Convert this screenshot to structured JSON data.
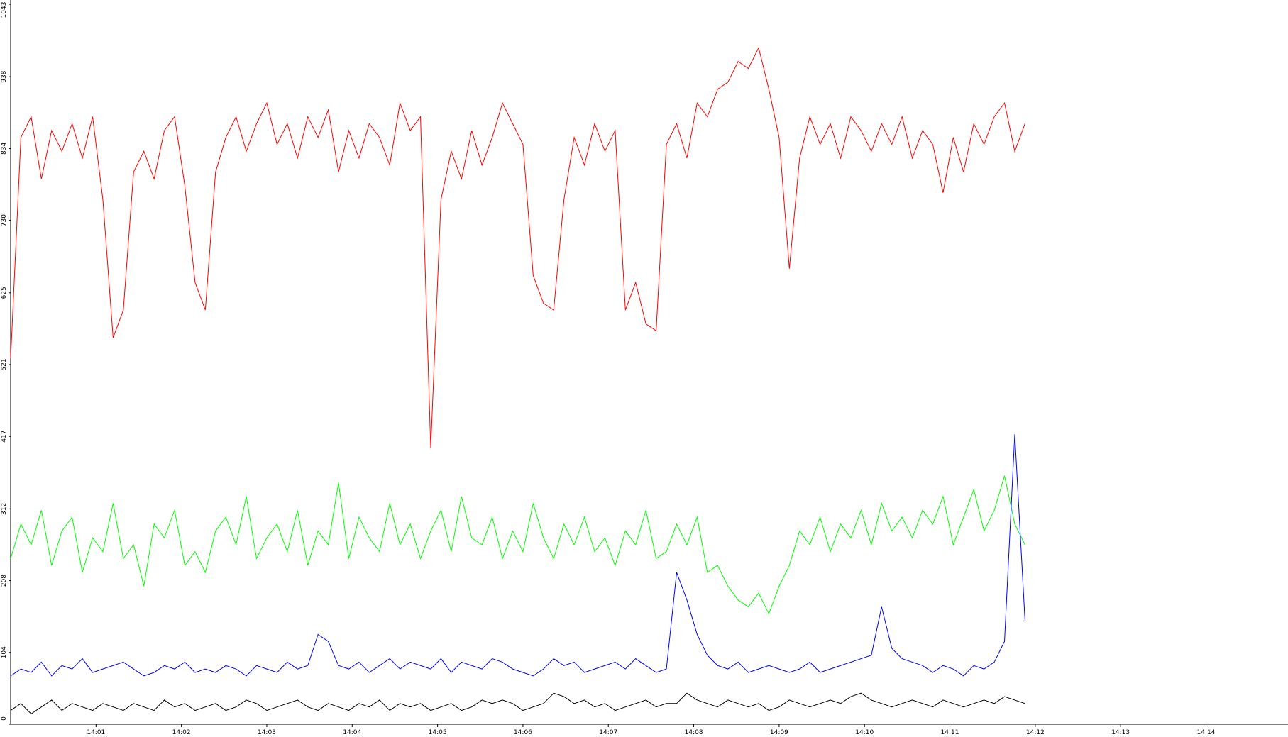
{
  "chart_data": {
    "type": "line",
    "x": [
      840.0,
      840.12,
      840.24,
      840.36,
      840.48,
      840.6,
      840.72,
      840.84,
      840.96,
      841.08,
      841.2,
      841.32,
      841.44,
      841.56,
      841.68,
      841.8,
      841.92,
      842.04,
      842.16,
      842.28,
      842.4,
      842.52,
      842.64,
      842.76,
      842.88,
      843.0,
      843.12,
      843.24,
      843.36,
      843.48,
      843.6,
      843.72,
      843.84,
      843.96,
      844.08,
      844.2,
      844.32,
      844.44,
      844.56,
      844.68,
      844.8,
      844.92,
      845.04,
      845.16,
      845.28,
      845.4,
      845.52,
      845.64,
      845.76,
      845.88,
      846.0,
      846.12,
      846.24,
      846.36,
      846.48,
      846.6,
      846.72,
      846.84,
      846.96,
      847.08,
      847.2,
      847.32,
      847.44,
      847.56,
      847.68,
      847.8,
      847.92,
      848.04,
      848.16,
      848.28,
      848.4,
      848.52,
      848.64,
      848.76,
      848.88,
      849.0,
      849.12,
      849.24,
      849.36,
      849.48,
      849.6,
      849.72,
      849.84,
      849.96,
      850.08,
      850.2,
      850.32,
      850.44,
      850.56,
      850.68,
      850.8,
      850.92,
      851.04,
      851.16,
      851.28,
      851.4,
      851.52,
      851.64,
      851.76,
      851.88
    ],
    "series": [
      {
        "color": "#ff0000",
        "values": [
          530,
          850,
          880,
          790,
          860,
          830,
          870,
          820,
          880,
          760,
          560,
          600,
          800,
          830,
          790,
          860,
          880,
          780,
          640,
          600,
          800,
          850,
          880,
          830,
          870,
          900,
          840,
          870,
          820,
          880,
          850,
          890,
          800,
          860,
          820,
          870,
          850,
          810,
          900,
          860,
          880,
          400,
          760,
          830,
          790,
          860,
          810,
          850,
          900,
          870,
          840,
          650,
          610,
          600,
          760,
          850,
          810,
          870,
          830,
          860,
          600,
          640,
          580,
          570,
          840,
          870,
          820,
          900,
          880,
          920,
          930,
          960,
          950,
          980,
          920,
          850,
          660,
          820,
          880,
          840,
          870,
          820,
          880,
          860,
          830,
          870,
          840,
          880,
          820,
          860,
          840,
          770,
          850,
          800,
          870,
          840,
          880,
          900,
          830,
          870
        ]
      },
      {
        "color": "#00ff00",
        "values": [
          240,
          290,
          260,
          310,
          230,
          280,
          300,
          220,
          270,
          250,
          320,
          240,
          260,
          200,
          290,
          270,
          310,
          230,
          250,
          220,
          280,
          300,
          260,
          330,
          240,
          270,
          290,
          250,
          310,
          230,
          280,
          260,
          350,
          240,
          300,
          270,
          250,
          320,
          260,
          290,
          240,
          280,
          310,
          250,
          330,
          270,
          260,
          300,
          240,
          280,
          250,
          320,
          270,
          240,
          290,
          260,
          300,
          250,
          270,
          230,
          280,
          260,
          310,
          240,
          250,
          290,
          260,
          300,
          220,
          230,
          200,
          180,
          170,
          190,
          160,
          200,
          230,
          280,
          260,
          300,
          250,
          290,
          270,
          310,
          260,
          320,
          280,
          300,
          270,
          310,
          290,
          330,
          260,
          300,
          340,
          280,
          310,
          360,
          290,
          260
        ]
      },
      {
        "color": "#0000ff",
        "values": [
          70,
          80,
          75,
          90,
          70,
          85,
          80,
          95,
          75,
          80,
          85,
          90,
          80,
          70,
          75,
          85,
          80,
          90,
          75,
          80,
          75,
          85,
          80,
          70,
          85,
          80,
          75,
          90,
          80,
          85,
          130,
          120,
          85,
          80,
          90,
          75,
          85,
          95,
          80,
          90,
          85,
          80,
          95,
          75,
          90,
          85,
          80,
          95,
          90,
          80,
          75,
          70,
          80,
          95,
          85,
          90,
          75,
          80,
          85,
          90,
          80,
          95,
          85,
          75,
          80,
          220,
          180,
          130,
          100,
          85,
          80,
          90,
          75,
          80,
          85,
          80,
          75,
          80,
          90,
          75,
          80,
          85,
          90,
          95,
          100,
          170,
          110,
          95,
          90,
          85,
          75,
          85,
          80,
          70,
          85,
          80,
          90,
          120,
          420,
          150
        ]
      },
      {
        "color": "#000000",
        "values": [
          20,
          30,
          15,
          25,
          35,
          20,
          30,
          25,
          20,
          30,
          25,
          20,
          30,
          25,
          20,
          35,
          25,
          30,
          20,
          25,
          30,
          20,
          25,
          35,
          30,
          20,
          25,
          30,
          35,
          25,
          20,
          30,
          25,
          20,
          30,
          25,
          35,
          20,
          30,
          25,
          30,
          20,
          25,
          30,
          20,
          25,
          35,
          30,
          35,
          30,
          20,
          25,
          30,
          45,
          40,
          30,
          35,
          25,
          30,
          20,
          25,
          30,
          35,
          25,
          30,
          30,
          45,
          35,
          30,
          25,
          35,
          30,
          25,
          30,
          20,
          25,
          35,
          30,
          25,
          30,
          35,
          30,
          40,
          45,
          35,
          30,
          25,
          30,
          35,
          30,
          25,
          35,
          30,
          25,
          30,
          35,
          30,
          40,
          35,
          30
        ]
      }
    ],
    "xlim": [
      840,
      854.96
    ],
    "xticks": [
      {
        "value": 841,
        "label": "14:01"
      },
      {
        "value": 842,
        "label": "14:02"
      },
      {
        "value": 843,
        "label": "14:03"
      },
      {
        "value": 844,
        "label": "14:04"
      },
      {
        "value": 845,
        "label": "14:05"
      },
      {
        "value": 846,
        "label": "14:06"
      },
      {
        "value": 847,
        "label": "14:07"
      },
      {
        "value": 848,
        "label": "14:08"
      },
      {
        "value": 849,
        "label": "14:09"
      },
      {
        "value": 850,
        "label": "14:10"
      },
      {
        "value": 851,
        "label": "14:11"
      },
      {
        "value": 852,
        "label": "14:12"
      },
      {
        "value": 853,
        "label": "14:13"
      },
      {
        "value": 854,
        "label": "14:14"
      }
    ],
    "ylim": [
      0,
      1043
    ],
    "yticks": [
      0,
      104,
      208,
      312,
      417,
      521,
      625,
      730,
      834,
      938,
      1043
    ]
  }
}
